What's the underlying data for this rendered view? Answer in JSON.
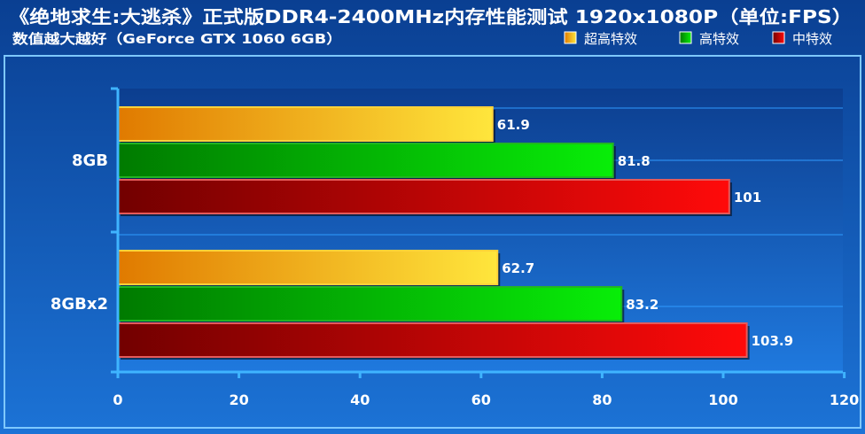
{
  "header": {
    "title": "《绝地求生:大逃杀》正式版DDR4-2400MHz内存性能测试 1920x1080P（单位:FPS）",
    "subtitle": "数值越大越好（GeForce GTX 1060 6GB）"
  },
  "colors": {
    "background_top": "#0a3f92",
    "background_bottom": "#1c73d6",
    "plot_top": "#0c3e8f",
    "plot_bottom": "#1f79de",
    "panel_border": "#7ec8ff",
    "axis": "#3fb4ff",
    "gridline": "#2f9bff",
    "text": "#ffffff"
  },
  "chart_data": {
    "type": "bar",
    "orientation": "horizontal",
    "title": "《绝地求生:大逃杀》正式版DDR4-2400MHz内存性能测试 1920x1080P（单位:FPS）",
    "subtitle": "数值越大越好（GeForce GTX 1060 6GB）",
    "categories": [
      "8GB",
      "8GBx2"
    ],
    "series": [
      {
        "name": "超高特效",
        "values": [
          61.9,
          62.7
        ],
        "value_labels": [
          "61.9",
          "62.7"
        ],
        "color_start": "#e07a00",
        "color_end": "#ffe63c",
        "stroke": "#ffd23a"
      },
      {
        "name": "高特效",
        "values": [
          81.8,
          83.2
        ],
        "value_labels": [
          "81.8",
          "83.2"
        ],
        "color_start": "#007a00",
        "color_end": "#08ee08",
        "stroke": "#22b522"
      },
      {
        "name": "中特效",
        "values": [
          101,
          103.9
        ],
        "value_labels": [
          "101",
          "103.9"
        ],
        "color_start": "#720000",
        "color_end": "#ff0a0a",
        "stroke": "#e55a5a"
      }
    ],
    "x_ticks": [
      "0",
      "20",
      "40",
      "60",
      "80",
      "100",
      "120"
    ],
    "xlim": [
      0,
      120
    ],
    "grid": true,
    "legend": "top-right",
    "xlabel": "",
    "ylabel": ""
  }
}
